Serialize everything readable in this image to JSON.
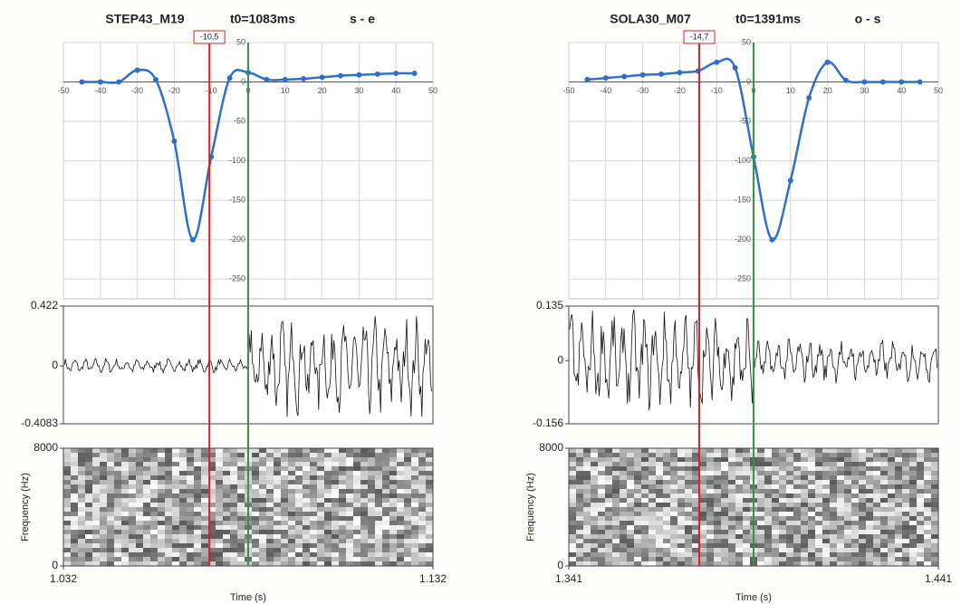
{
  "chart_data": [
    {
      "type": "line",
      "title": "STEP43_M19",
      "subtitle": "t0=1083ms",
      "annotation": "s - e",
      "marker": {
        "value": -10.5,
        "label": "-10,5"
      },
      "x": [
        -45,
        -40,
        -35,
        -30,
        -25,
        -20,
        -15,
        -10,
        -5,
        0,
        5,
        10,
        15,
        20,
        25,
        30,
        35,
        40,
        45
      ],
      "series": [
        {
          "color": "#2f6fc9",
          "values": [
            0,
            0,
            0,
            15,
            3,
            -75,
            -200,
            -95,
            5,
            12,
            3,
            3,
            4,
            6,
            8,
            9,
            10,
            11,
            11
          ]
        }
      ],
      "xlim": [
        -50,
        50
      ],
      "xticks": [
        -50,
        -40,
        -30,
        -20,
        -10,
        0,
        10,
        20,
        30,
        40,
        50
      ],
      "ylim": [
        -275,
        50
      ],
      "yticks": [
        50,
        0,
        -50,
        -100,
        -150,
        -200,
        -250
      ],
      "grid": true,
      "waveform": {
        "ylim": [
          -0.4083,
          0.422
        ],
        "yticks": [
          0.422,
          0,
          -0.4083
        ]
      },
      "spectrogram": {
        "ylabel": "Frequency (Hz)",
        "ylim": [
          0,
          8000
        ],
        "yticks": [
          0,
          8000
        ],
        "xlabel": "Time (s)",
        "xlim": [
          1.032,
          1.132
        ],
        "xticks": [
          1.032,
          1.132
        ]
      }
    },
    {
      "type": "line",
      "title": "SOLA30_M07",
      "subtitle": "t0=1391ms",
      "annotation": "o - s",
      "marker": {
        "value": -14.7,
        "label": "-14,7"
      },
      "x": [
        -45,
        -40,
        -35,
        -30,
        -25,
        -20,
        -15,
        -10,
        -5,
        0,
        5,
        10,
        15,
        20,
        25,
        30,
        35,
        40,
        45
      ],
      "series": [
        {
          "color": "#2f6fc9",
          "values": [
            3,
            5,
            7,
            9,
            10,
            12,
            14,
            25,
            18,
            -95,
            -200,
            -125,
            -20,
            25,
            2,
            0,
            0,
            0,
            0
          ]
        }
      ],
      "xlim": [
        -50,
        50
      ],
      "xticks": [
        -50,
        -40,
        -30,
        -20,
        -10,
        0,
        10,
        20,
        30,
        40,
        50
      ],
      "ylim": [
        -275,
        50
      ],
      "yticks": [
        50,
        0,
        -50,
        -100,
        -150,
        -200,
        -250
      ],
      "grid": true,
      "waveform": {
        "ylim": [
          -0.156,
          0.135
        ],
        "yticks": [
          0.135,
          0,
          -0.156
        ]
      },
      "spectrogram": {
        "ylabel": "Frequency (Hz)",
        "ylim": [
          0,
          8000
        ],
        "yticks": [
          0,
          8000
        ],
        "xlabel": "Time (s)",
        "xlim": [
          1.341,
          1.441
        ],
        "xticks": [
          1.341,
          1.441
        ]
      }
    }
  ]
}
